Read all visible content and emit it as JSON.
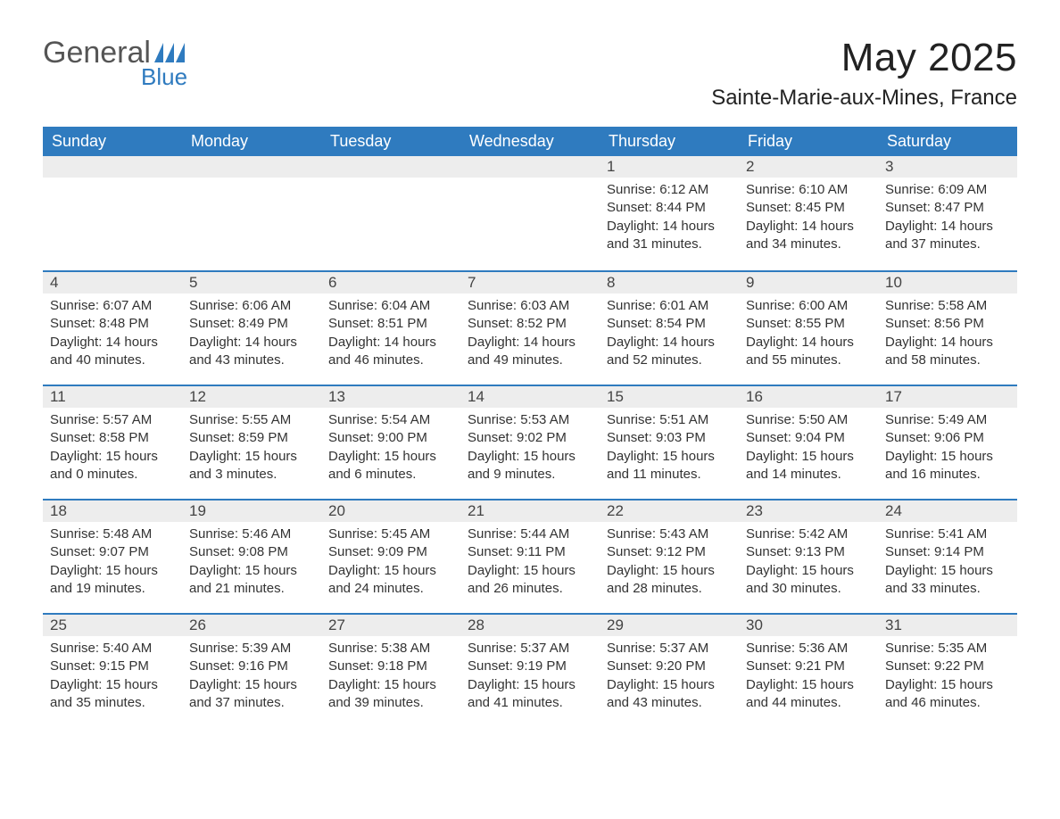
{
  "logo": {
    "text1": "General",
    "text2": "Blue",
    "flag_color": "#2f7bbf",
    "text1_color": "#555555",
    "text2_color": "#2f7bbf"
  },
  "header": {
    "month_title": "May 2025",
    "location": "Sainte-Marie-aux-Mines, France"
  },
  "colors": {
    "header_bg": "#2f7bbf",
    "header_text": "#ffffff",
    "daynum_bg": "#ededed",
    "border_top": "#2f7bbf",
    "body_bg": "#ffffff",
    "text": "#333333"
  },
  "day_labels": [
    "Sunday",
    "Monday",
    "Tuesday",
    "Wednesday",
    "Thursday",
    "Friday",
    "Saturday"
  ],
  "weeks": [
    [
      {
        "blank": true
      },
      {
        "blank": true
      },
      {
        "blank": true
      },
      {
        "blank": true
      },
      {
        "n": "1",
        "sr": "Sunrise: 6:12 AM",
        "ss": "Sunset: 8:44 PM",
        "dl": "Daylight: 14 hours and 31 minutes."
      },
      {
        "n": "2",
        "sr": "Sunrise: 6:10 AM",
        "ss": "Sunset: 8:45 PM",
        "dl": "Daylight: 14 hours and 34 minutes."
      },
      {
        "n": "3",
        "sr": "Sunrise: 6:09 AM",
        "ss": "Sunset: 8:47 PM",
        "dl": "Daylight: 14 hours and 37 minutes."
      }
    ],
    [
      {
        "n": "4",
        "sr": "Sunrise: 6:07 AM",
        "ss": "Sunset: 8:48 PM",
        "dl": "Daylight: 14 hours and 40 minutes."
      },
      {
        "n": "5",
        "sr": "Sunrise: 6:06 AM",
        "ss": "Sunset: 8:49 PM",
        "dl": "Daylight: 14 hours and 43 minutes."
      },
      {
        "n": "6",
        "sr": "Sunrise: 6:04 AM",
        "ss": "Sunset: 8:51 PM",
        "dl": "Daylight: 14 hours and 46 minutes."
      },
      {
        "n": "7",
        "sr": "Sunrise: 6:03 AM",
        "ss": "Sunset: 8:52 PM",
        "dl": "Daylight: 14 hours and 49 minutes."
      },
      {
        "n": "8",
        "sr": "Sunrise: 6:01 AM",
        "ss": "Sunset: 8:54 PM",
        "dl": "Daylight: 14 hours and 52 minutes."
      },
      {
        "n": "9",
        "sr": "Sunrise: 6:00 AM",
        "ss": "Sunset: 8:55 PM",
        "dl": "Daylight: 14 hours and 55 minutes."
      },
      {
        "n": "10",
        "sr": "Sunrise: 5:58 AM",
        "ss": "Sunset: 8:56 PM",
        "dl": "Daylight: 14 hours and 58 minutes."
      }
    ],
    [
      {
        "n": "11",
        "sr": "Sunrise: 5:57 AM",
        "ss": "Sunset: 8:58 PM",
        "dl": "Daylight: 15 hours and 0 minutes."
      },
      {
        "n": "12",
        "sr": "Sunrise: 5:55 AM",
        "ss": "Sunset: 8:59 PM",
        "dl": "Daylight: 15 hours and 3 minutes."
      },
      {
        "n": "13",
        "sr": "Sunrise: 5:54 AM",
        "ss": "Sunset: 9:00 PM",
        "dl": "Daylight: 15 hours and 6 minutes."
      },
      {
        "n": "14",
        "sr": "Sunrise: 5:53 AM",
        "ss": "Sunset: 9:02 PM",
        "dl": "Daylight: 15 hours and 9 minutes."
      },
      {
        "n": "15",
        "sr": "Sunrise: 5:51 AM",
        "ss": "Sunset: 9:03 PM",
        "dl": "Daylight: 15 hours and 11 minutes."
      },
      {
        "n": "16",
        "sr": "Sunrise: 5:50 AM",
        "ss": "Sunset: 9:04 PM",
        "dl": "Daylight: 15 hours and 14 minutes."
      },
      {
        "n": "17",
        "sr": "Sunrise: 5:49 AM",
        "ss": "Sunset: 9:06 PM",
        "dl": "Daylight: 15 hours and 16 minutes."
      }
    ],
    [
      {
        "n": "18",
        "sr": "Sunrise: 5:48 AM",
        "ss": "Sunset: 9:07 PM",
        "dl": "Daylight: 15 hours and 19 minutes."
      },
      {
        "n": "19",
        "sr": "Sunrise: 5:46 AM",
        "ss": "Sunset: 9:08 PM",
        "dl": "Daylight: 15 hours and 21 minutes."
      },
      {
        "n": "20",
        "sr": "Sunrise: 5:45 AM",
        "ss": "Sunset: 9:09 PM",
        "dl": "Daylight: 15 hours and 24 minutes."
      },
      {
        "n": "21",
        "sr": "Sunrise: 5:44 AM",
        "ss": "Sunset: 9:11 PM",
        "dl": "Daylight: 15 hours and 26 minutes."
      },
      {
        "n": "22",
        "sr": "Sunrise: 5:43 AM",
        "ss": "Sunset: 9:12 PM",
        "dl": "Daylight: 15 hours and 28 minutes."
      },
      {
        "n": "23",
        "sr": "Sunrise: 5:42 AM",
        "ss": "Sunset: 9:13 PM",
        "dl": "Daylight: 15 hours and 30 minutes."
      },
      {
        "n": "24",
        "sr": "Sunrise: 5:41 AM",
        "ss": "Sunset: 9:14 PM",
        "dl": "Daylight: 15 hours and 33 minutes."
      }
    ],
    [
      {
        "n": "25",
        "sr": "Sunrise: 5:40 AM",
        "ss": "Sunset: 9:15 PM",
        "dl": "Daylight: 15 hours and 35 minutes."
      },
      {
        "n": "26",
        "sr": "Sunrise: 5:39 AM",
        "ss": "Sunset: 9:16 PM",
        "dl": "Daylight: 15 hours and 37 minutes."
      },
      {
        "n": "27",
        "sr": "Sunrise: 5:38 AM",
        "ss": "Sunset: 9:18 PM",
        "dl": "Daylight: 15 hours and 39 minutes."
      },
      {
        "n": "28",
        "sr": "Sunrise: 5:37 AM",
        "ss": "Sunset: 9:19 PM",
        "dl": "Daylight: 15 hours and 41 minutes."
      },
      {
        "n": "29",
        "sr": "Sunrise: 5:37 AM",
        "ss": "Sunset: 9:20 PM",
        "dl": "Daylight: 15 hours and 43 minutes."
      },
      {
        "n": "30",
        "sr": "Sunrise: 5:36 AM",
        "ss": "Sunset: 9:21 PM",
        "dl": "Daylight: 15 hours and 44 minutes."
      },
      {
        "n": "31",
        "sr": "Sunrise: 5:35 AM",
        "ss": "Sunset: 9:22 PM",
        "dl": "Daylight: 15 hours and 46 minutes."
      }
    ]
  ]
}
